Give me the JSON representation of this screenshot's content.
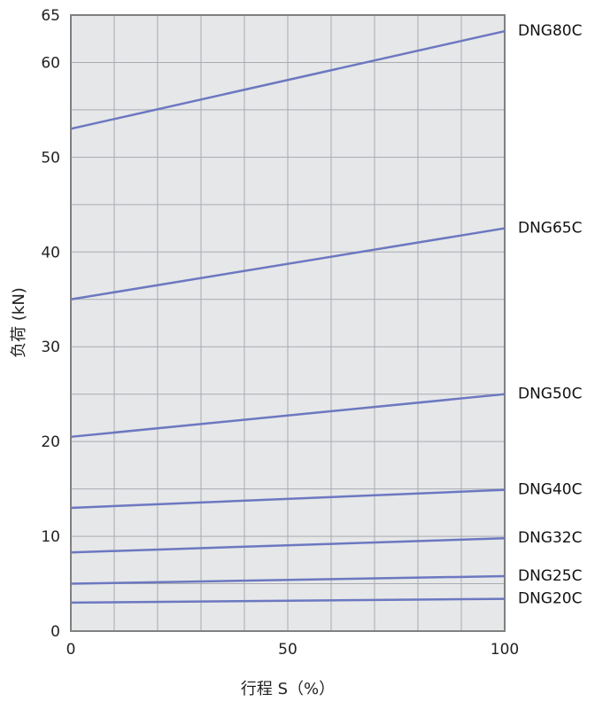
{
  "chart_data": {
    "type": "line",
    "title": "",
    "xlabel": "行程 S（%）",
    "ylabel": "负荷 (kN)",
    "xlim": [
      0,
      100
    ],
    "ylim": [
      0,
      65
    ],
    "x_ticks": [
      0,
      50,
      100
    ],
    "y_ticks": [
      0,
      10,
      20,
      30,
      40,
      50,
      60,
      65
    ],
    "x_tick_labels": [
      "0",
      "50",
      "100"
    ],
    "y_tick_labels": [
      "0",
      "10",
      "20",
      "30",
      "40",
      "50",
      "60",
      "65"
    ],
    "grid": true,
    "x_grid_step": 10,
    "y_grid_step": 5,
    "legend": "labels at right end of each line",
    "colors": {
      "plot_bg": "#e6e7e9",
      "grid": "#a9abb0",
      "frame": "#808080",
      "line": "#6c78c0"
    },
    "series": [
      {
        "name": "DNG80C",
        "x": [
          0,
          100
        ],
        "values": [
          53,
          63.3
        ]
      },
      {
        "name": "DNG65C",
        "x": [
          0,
          100
        ],
        "values": [
          35,
          42.5
        ]
      },
      {
        "name": "DNG50C",
        "x": [
          0,
          100
        ],
        "values": [
          20.5,
          25
        ]
      },
      {
        "name": "DNG40C",
        "x": [
          0,
          100
        ],
        "values": [
          13,
          14.9
        ]
      },
      {
        "name": "DNG32C",
        "x": [
          0,
          100
        ],
        "values": [
          8.3,
          9.8
        ]
      },
      {
        "name": "DNG25C",
        "x": [
          0,
          100
        ],
        "values": [
          5,
          5.8
        ]
      },
      {
        "name": "DNG20C",
        "x": [
          0,
          100
        ],
        "values": [
          3,
          3.4
        ]
      }
    ]
  }
}
